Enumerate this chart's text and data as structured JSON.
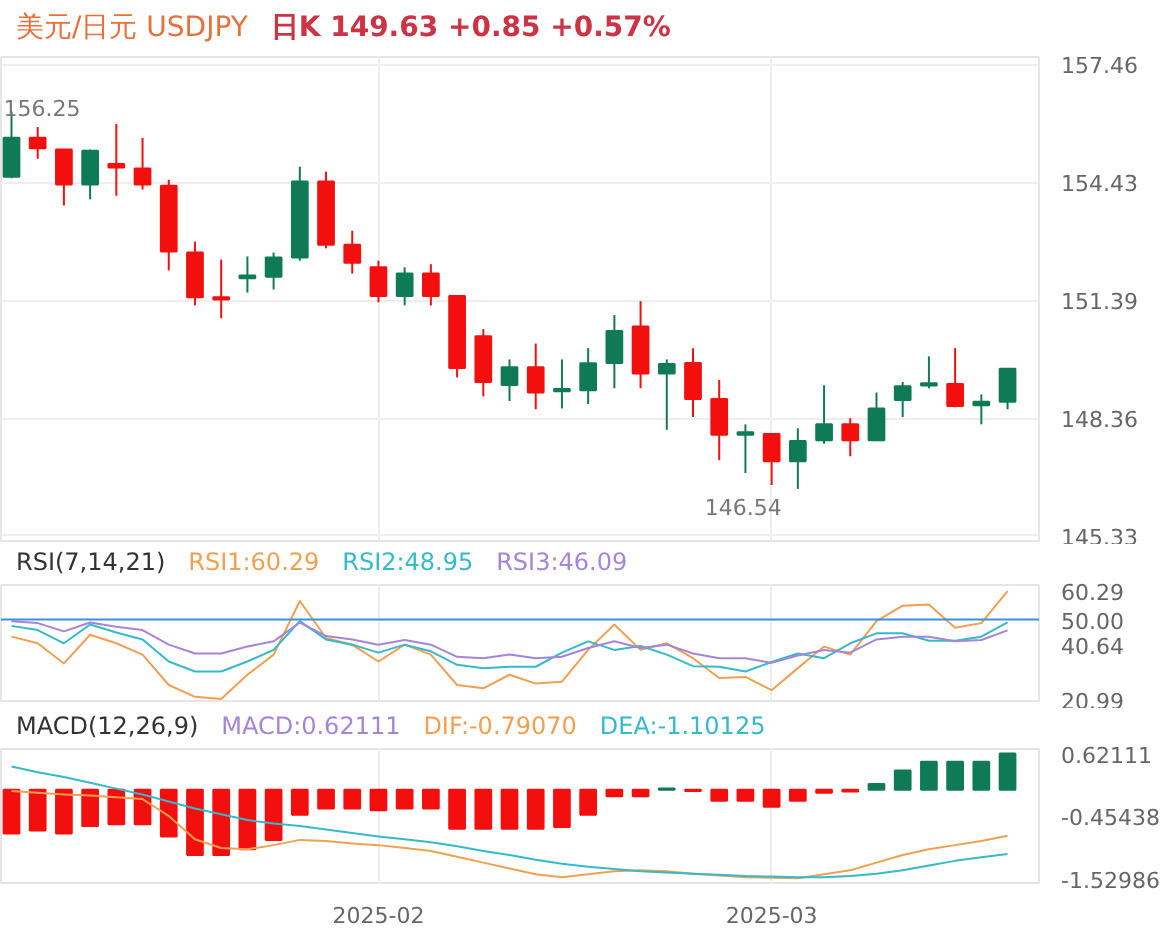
{
  "chart_data": [
    {
      "type": "candlestick",
      "title": "美元/日元 USDJPY",
      "subtitle": "日K  149.63  +0.85  +0.57%",
      "categories": [
        null,
        null,
        null,
        null,
        null,
        null,
        null,
        null,
        null,
        null,
        null,
        null,
        null,
        null,
        "2025-02",
        null,
        null,
        null,
        null,
        null,
        null,
        null,
        null,
        null,
        null,
        null,
        null,
        null,
        null,
        "2025-03",
        null,
        null,
        null,
        null,
        null,
        null,
        null,
        null,
        null
      ],
      "ohlc": [
        [
          154.57,
          156.25,
          154.53,
          155.57
        ],
        [
          155.57,
          155.85,
          155.03,
          155.3
        ],
        [
          155.27,
          155.27,
          153.83,
          154.37
        ],
        [
          154.37,
          155.27,
          153.99,
          155.24
        ],
        [
          154.9,
          155.93,
          154.08,
          154.81
        ],
        [
          154.78,
          155.57,
          154.24,
          154.37
        ],
        [
          154.34,
          154.49,
          152.16,
          152.65
        ],
        [
          152.62,
          152.9,
          151.26,
          151.47
        ],
        [
          151.47,
          152.44,
          150.93,
          151.41
        ],
        [
          151.96,
          152.52,
          151.59,
          152.03
        ],
        [
          152.0,
          152.62,
          151.67,
          152.49
        ],
        [
          152.49,
          154.83,
          152.41,
          154.45
        ],
        [
          154.45,
          154.7,
          152.73,
          152.82
        ],
        [
          152.82,
          153.18,
          152.08,
          152.36
        ],
        [
          152.24,
          152.41,
          151.34,
          151.5
        ],
        [
          151.5,
          152.24,
          151.26,
          152.08
        ],
        [
          152.08,
          152.32,
          151.26,
          151.5
        ],
        [
          151.5,
          151.5,
          149.41,
          149.65
        ],
        [
          150.47,
          150.65,
          148.92,
          149.29
        ],
        [
          149.21,
          149.87,
          148.8,
          149.67
        ],
        [
          149.67,
          150.28,
          148.59,
          149.02
        ],
        [
          149.05,
          149.87,
          148.61,
          149.11
        ],
        [
          149.08,
          150.16,
          148.72,
          149.77
        ],
        [
          149.78,
          151.01,
          149.13,
          150.6
        ],
        [
          150.72,
          151.37,
          149.13,
          149.51
        ],
        [
          149.51,
          149.87,
          148.06,
          149.75
        ],
        [
          149.78,
          150.16,
          148.39,
          148.85
        ],
        [
          148.85,
          149.34,
          147.28,
          147.93
        ],
        [
          147.93,
          148.2,
          146.95,
          148.0
        ],
        [
          147.95,
          147.95,
          146.64,
          147.25
        ],
        [
          147.25,
          148.1,
          146.54,
          147.77
        ],
        [
          147.79,
          149.21,
          147.7,
          148.2
        ],
        [
          148.2,
          148.36,
          147.38,
          147.79
        ],
        [
          147.79,
          149.02,
          147.79,
          148.61
        ],
        [
          148.83,
          149.29,
          148.39,
          149.18
        ],
        [
          149.2,
          149.95,
          149.13,
          149.26
        ],
        [
          149.24,
          150.16,
          148.64,
          148.67
        ],
        [
          148.69,
          148.97,
          148.2,
          148.78
        ],
        [
          148.78,
          149.63,
          148.59,
          149.63
        ]
      ],
      "colors": [
        "#0f7b56",
        "#f40f0f",
        "#f40f0f",
        "#0f7b56",
        "#f40f0f",
        "#f40f0f",
        "#f40f0f",
        "#f40f0f",
        "#f40f0f",
        "#0f7b56",
        "#0f7b56",
        "#0f7b56",
        "#f40f0f",
        "#f40f0f",
        "#f40f0f",
        "#0f7b56",
        "#f40f0f",
        "#f40f0f",
        "#f40f0f",
        "#0f7b56",
        "#f40f0f",
        "#0f7b56",
        "#0f7b56",
        "#0f7b56",
        "#f40f0f",
        "#0f7b56",
        "#f40f0f",
        "#f40f0f",
        "#0f7b56",
        "#f40f0f",
        "#0f7b56",
        "#0f7b56",
        "#f40f0f",
        "#0f7b56",
        "#0f7b56",
        "#0f7b56",
        "#f40f0f",
        "#0f7b56",
        "#0f7b56"
      ],
      "ylim": [
        145.2,
        157.65
      ],
      "yticks": [
        157.46,
        154.43,
        151.39,
        148.36,
        145.33
      ],
      "annotations": [
        "156.25",
        "146.54"
      ],
      "grid": true,
      "tick_labels": "y"
    },
    {
      "type": "line",
      "title": "RSI(7,14,21)",
      "categories": [
        null,
        null,
        null,
        null,
        null,
        null,
        null,
        null,
        null,
        null,
        null,
        null,
        null,
        null,
        "2025-02",
        null,
        null,
        null,
        null,
        null,
        null,
        null,
        null,
        null,
        null,
        null,
        null,
        null,
        null,
        "2025-03",
        null,
        null,
        null,
        null,
        null,
        null,
        null,
        null,
        null
      ],
      "series": [
        {
          "name": "RSI1:60.29",
          "color": "#f0a050",
          "values": [
            43.8,
            41.4,
            34.1,
            44.5,
            41.4,
            37.3,
            26.3,
            22.0,
            21.2,
            30.0,
            37.3,
            56.7,
            43.3,
            40.9,
            34.8,
            40.9,
            37.3,
            26.3,
            25.1,
            30.0,
            26.8,
            27.5,
            39.0,
            48.2,
            39.0,
            41.4,
            36.0,
            28.8,
            29.2,
            24.4,
            32.4,
            40.2,
            37.3,
            49.4,
            55.0,
            55.4,
            47.0,
            48.7,
            60.29
          ]
        },
        {
          "name": "RSI2:48.95",
          "color": "#36b9c9",
          "values": [
            47.7,
            46.2,
            41.4,
            48.2,
            45.3,
            42.8,
            34.8,
            31.2,
            31.2,
            34.8,
            39.0,
            49.4,
            42.8,
            40.9,
            38.0,
            40.9,
            38.5,
            33.6,
            32.4,
            32.9,
            32.9,
            38.0,
            42.1,
            39.0,
            40.4,
            37.3,
            33.1,
            32.9,
            31.2,
            34.6,
            37.7,
            36.0,
            41.4,
            45.0,
            45.0,
            42.3,
            42.3,
            43.8,
            48.95
          ]
        },
        {
          "name": "RSI3:46.09",
          "color": "#a585d8",
          "values": [
            49.4,
            48.7,
            45.7,
            48.9,
            47.4,
            46.2,
            40.9,
            37.7,
            37.7,
            40.2,
            42.1,
            48.9,
            44.0,
            42.8,
            40.9,
            42.6,
            40.9,
            36.5,
            36.0,
            37.3,
            36.0,
            36.5,
            39.7,
            42.1,
            39.7,
            40.9,
            37.7,
            36.0,
            36.0,
            34.3,
            37.0,
            39.0,
            38.0,
            42.8,
            43.8,
            43.8,
            42.1,
            42.6,
            46.09
          ]
        }
      ],
      "ylim": [
        20.5,
        62.5
      ],
      "yticks": [
        60.29,
        40.64,
        20.99
      ],
      "ref_lines": [
        {
          "axis": "y",
          "value": 50,
          "label": "50.00",
          "color": "#3d8fe0"
        }
      ],
      "legend": "top",
      "grid": "x",
      "tick_labels": "y"
    },
    {
      "type": "bar",
      "title": "MACD(12,26,9)",
      "categories": [
        null,
        null,
        null,
        null,
        null,
        null,
        null,
        null,
        null,
        null,
        null,
        null,
        null,
        null,
        "2025-02",
        null,
        null,
        null,
        null,
        null,
        null,
        null,
        null,
        null,
        null,
        null,
        null,
        null,
        null,
        "2025-03",
        null,
        null,
        null,
        null,
        null,
        null,
        null,
        null,
        null
      ],
      "series": [
        {
          "name": "MACD:0.62111",
          "color": "#a585d8",
          "colors": [
            "#f40f0f",
            "#f40f0f",
            "#f40f0f",
            "#f40f0f",
            "#f40f0f",
            "#f40f0f",
            "#f40f0f",
            "#f40f0f",
            "#f40f0f",
            "#f40f0f",
            "#f40f0f",
            "#f40f0f",
            "#f40f0f",
            "#f40f0f",
            "#f40f0f",
            "#f40f0f",
            "#f40f0f",
            "#f40f0f",
            "#f40f0f",
            "#f40f0f",
            "#f40f0f",
            "#f40f0f",
            "#f40f0f",
            "#f40f0f",
            "#f40f0f",
            "#0f7b56",
            "#f40f0f",
            "#f40f0f",
            "#f40f0f",
            "#f40f0f",
            "#f40f0f",
            "#f40f0f",
            "#f40f0f",
            "#0f7b56",
            "#0f7b56",
            "#0f7b56",
            "#0f7b56",
            "#0f7b56",
            "#0f7b56"
          ],
          "values": [
            -0.75,
            -0.7,
            -0.75,
            -0.62,
            -0.59,
            -0.59,
            -0.8,
            -1.12,
            -1.12,
            -1.02,
            -0.86,
            -0.43,
            -0.32,
            -0.32,
            -0.35,
            -0.32,
            -0.32,
            -0.67,
            -0.67,
            -0.67,
            -0.67,
            -0.64,
            -0.43,
            -0.11,
            -0.11,
            0.02,
            -0.02,
            -0.19,
            -0.19,
            -0.29,
            -0.19,
            -0.05,
            -0.03,
            0.1,
            0.33,
            0.48,
            0.48,
            0.48,
            0.62111
          ]
        },
        {
          "type": "line",
          "name": "DIF:-0.79070",
          "color": "#f0a050",
          "values": [
            -0.02,
            -0.05,
            -0.08,
            -0.1,
            -0.13,
            -0.16,
            -0.45,
            -0.85,
            -1.0,
            -1.02,
            -0.95,
            -0.86,
            -0.88,
            -0.92,
            -0.95,
            -1.0,
            -1.05,
            -1.15,
            -1.25,
            -1.35,
            -1.45,
            -1.5,
            -1.45,
            -1.4,
            -1.38,
            -1.4,
            -1.44,
            -1.47,
            -1.5,
            -1.51,
            -1.52,
            -1.45,
            -1.38,
            -1.25,
            -1.12,
            -1.02,
            -0.95,
            -0.88,
            -0.7907
          ]
        },
        {
          "type": "line",
          "name": "DEA:-1.10125",
          "color": "#36b9c9",
          "values": [
            0.4,
            0.3,
            0.22,
            0.12,
            0.02,
            -0.08,
            -0.2,
            -0.32,
            -0.42,
            -0.52,
            -0.58,
            -0.62,
            -0.68,
            -0.74,
            -0.8,
            -0.85,
            -0.9,
            -0.97,
            -1.05,
            -1.12,
            -1.2,
            -1.27,
            -1.32,
            -1.36,
            -1.4,
            -1.42,
            -1.44,
            -1.46,
            -1.48,
            -1.49,
            -1.5,
            -1.5,
            -1.48,
            -1.44,
            -1.38,
            -1.3,
            -1.22,
            -1.16,
            -1.10125
          ]
        }
      ],
      "ylim": [
        -1.6,
        0.7
      ],
      "yticks": [
        {
          "value": 0.62111,
          "label": "0.62111"
        },
        {
          "value": -0.45438,
          "label": "-0.45438"
        },
        {
          "value": -1.52986,
          "label": "-1.52986"
        }
      ],
      "legend": "top",
      "grid": "x"
    }
  ]
}
